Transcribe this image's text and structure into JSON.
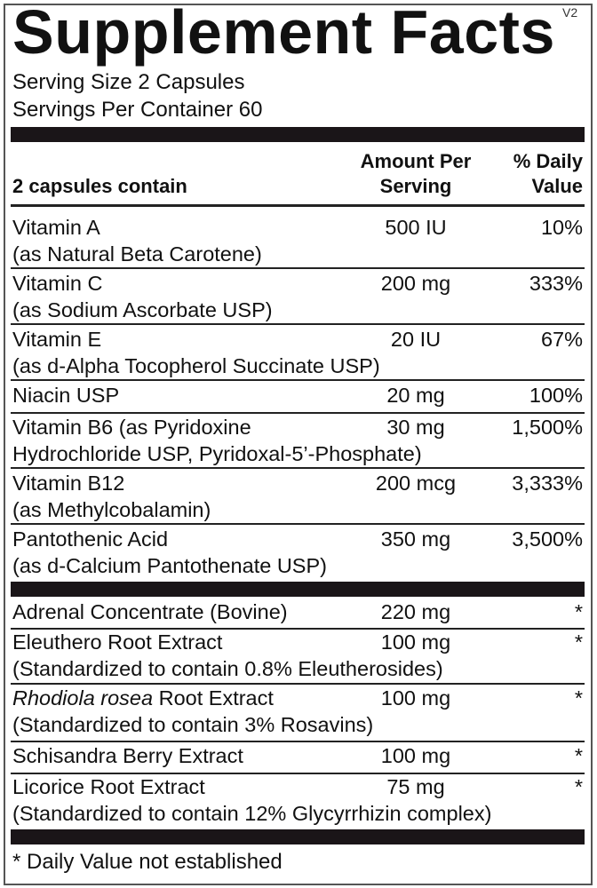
{
  "title": "Supplement Facts",
  "version": "V2",
  "serving_size": "Serving Size 2 Capsules",
  "servings_per_container": "Servings Per Container 60",
  "header": {
    "contain": "2 capsules contain",
    "amount_1": "Amount Per",
    "amount_2": "Serving",
    "dv_1": "% Daily",
    "dv_2": "Value"
  },
  "vitamins": [
    {
      "name": "Vitamin A",
      "sub": "(as Natural Beta Carotene)",
      "amount": "500 IU",
      "dv": "10%"
    },
    {
      "name": "Vitamin C",
      "sub": "(as Sodium Ascorbate USP)",
      "amount": "200 mg",
      "dv": "333%"
    },
    {
      "name": "Vitamin E",
      "sub": "(as d-Alpha Tocopherol Succinate USP)",
      "amount": "20 IU",
      "dv": "67%"
    },
    {
      "name": "Niacin USP",
      "sub": "",
      "amount": "20 mg",
      "dv": "100%"
    },
    {
      "name": "Vitamin B6 (as Pyridoxine",
      "sub": "Hydrochloride USP, Pyridoxal-5’-Phosphate)",
      "amount": "30 mg",
      "dv": "1,500%"
    },
    {
      "name": "Vitamin B12",
      "sub": "(as Methylcobalamin)",
      "amount": "200 mcg",
      "dv": "3,333%"
    },
    {
      "name": "Pantothenic Acid",
      "sub": "(as d-Calcium Pantothenate USP)",
      "amount": "350 mg",
      "dv": "3,500%"
    }
  ],
  "others": [
    {
      "name": "Adrenal Concentrate (Bovine)",
      "sub": "",
      "amount": "220 mg",
      "dv": "*"
    },
    {
      "name": "Eleuthero Root Extract",
      "sub": "(Standardized to contain 0.8% Eleutherosides)",
      "amount": "100 mg",
      "dv": "*"
    },
    {
      "name_italic": "Rhodiola rosea",
      "name": " Root Extract",
      "sub": "(Standardized to contain 3% Rosavins)",
      "amount": "100 mg",
      "dv": "*"
    },
    {
      "name": "Schisandra Berry Extract",
      "sub": "",
      "amount": "100 mg",
      "dv": "*"
    },
    {
      "name": "Licorice Root Extract",
      "sub": "(Standardized to contain 12% Glycyrrhizin complex)",
      "amount": "75 mg",
      "dv": "*"
    }
  ],
  "footnote": "* Daily Value not established"
}
